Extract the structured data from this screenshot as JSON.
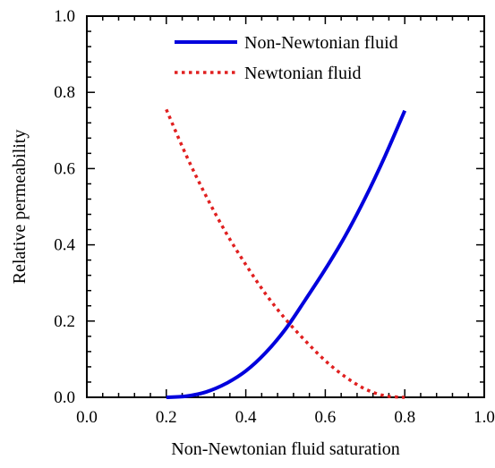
{
  "chart_data": {
    "type": "line",
    "xlabel": "Non-Newtonian fluid saturation",
    "ylabel": "Relative permeability",
    "xlim": [
      0.0,
      1.0
    ],
    "ylim": [
      0.0,
      1.0
    ],
    "x_ticks": [
      "0.0",
      "0.2",
      "0.4",
      "0.6",
      "0.8",
      "1.0"
    ],
    "y_ticks": [
      "0.0",
      "0.2",
      "0.4",
      "0.6",
      "0.8",
      "1.0"
    ],
    "grid": false,
    "legend_position": "top-right",
    "series": [
      {
        "name": "Non-Newtonian fluid",
        "style": "solid",
        "color": "#0000dd",
        "x": [
          0.2,
          0.25,
          0.3,
          0.35,
          0.4,
          0.45,
          0.5,
          0.55,
          0.6,
          0.65,
          0.7,
          0.75,
          0.8
        ],
        "y": [
          0.0,
          0.003,
          0.014,
          0.036,
          0.069,
          0.117,
          0.179,
          0.256,
          0.336,
          0.423,
          0.522,
          0.632,
          0.752
        ]
      },
      {
        "name": "Newtonian fluid",
        "style": "dotted",
        "color": "#e02020",
        "x": [
          0.2,
          0.25,
          0.3,
          0.35,
          0.4,
          0.45,
          0.5,
          0.55,
          0.6,
          0.65,
          0.7,
          0.75,
          0.8
        ],
        "y": [
          0.755,
          0.635,
          0.528,
          0.432,
          0.348,
          0.271,
          0.205,
          0.148,
          0.096,
          0.054,
          0.022,
          0.004,
          0.0
        ]
      }
    ]
  }
}
